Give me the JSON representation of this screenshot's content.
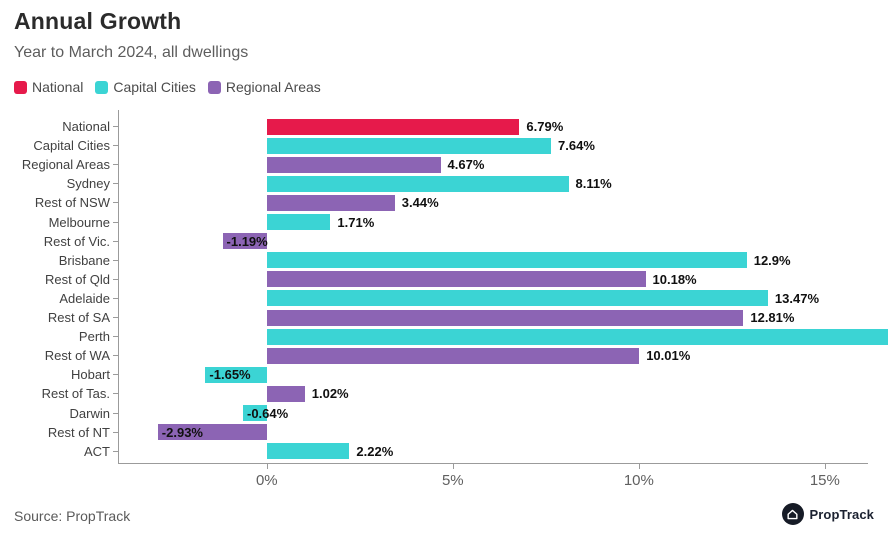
{
  "header": {
    "title": "Annual Growth",
    "subtitle": "Year to March 2024, all dwellings"
  },
  "legend": [
    {
      "label": "National",
      "group": "national"
    },
    {
      "label": "Capital Cities",
      "group": "capital_cities"
    },
    {
      "label": "Regional Areas",
      "group": "regional_areas"
    }
  ],
  "colors": {
    "national": "#e61a4b",
    "capital_cities": "#3bd4d4",
    "regional_areas": "#8c64b4",
    "axis": "#9b9b9b",
    "value_label": "#101010"
  },
  "chart_data": {
    "type": "bar",
    "orientation": "horizontal",
    "title": "Annual Growth",
    "subtitle": "Year to March 2024, all dwellings",
    "legend_position": "top-left",
    "grid": false,
    "xlabel": "",
    "ylabel": "",
    "x_axis": {
      "min": -4.0,
      "max": 16.16,
      "ticks": [
        {
          "value": 0,
          "label": "0%"
        },
        {
          "value": 5,
          "label": "5%"
        },
        {
          "value": 10,
          "label": "10%"
        },
        {
          "value": 15,
          "label": "15%"
        }
      ]
    },
    "bars": [
      {
        "category": "National",
        "value": 6.79,
        "value_label": "6.79%",
        "group": "national"
      },
      {
        "category": "Capital Cities",
        "value": 7.64,
        "value_label": "7.64%",
        "group": "capital_cities"
      },
      {
        "category": "Regional Areas",
        "value": 4.67,
        "value_label": "4.67%",
        "group": "regional_areas"
      },
      {
        "category": "Sydney",
        "value": 8.11,
        "value_label": "8.11%",
        "group": "capital_cities"
      },
      {
        "category": "Rest of NSW",
        "value": 3.44,
        "value_label": "3.44%",
        "group": "regional_areas"
      },
      {
        "category": "Melbourne",
        "value": 1.71,
        "value_label": "1.71%",
        "group": "capital_cities"
      },
      {
        "category": "Rest of Vic.",
        "value": -1.19,
        "value_label": "-1.19%",
        "group": "regional_areas"
      },
      {
        "category": "Brisbane",
        "value": 12.9,
        "value_label": "12.9%",
        "group": "capital_cities"
      },
      {
        "category": "Rest of Qld",
        "value": 10.18,
        "value_label": "10.18%",
        "group": "regional_areas"
      },
      {
        "category": "Adelaide",
        "value": 13.47,
        "value_label": "13.47%",
        "group": "capital_cities"
      },
      {
        "category": "Rest of SA",
        "value": 12.81,
        "value_label": "12.81%",
        "group": "regional_areas"
      },
      {
        "category": "Perth",
        "value": 16.7,
        "value_label": "",
        "group": "capital_cities",
        "clipped": true
      },
      {
        "category": "Rest of WA",
        "value": 10.01,
        "value_label": "10.01%",
        "group": "regional_areas"
      },
      {
        "category": "Hobart",
        "value": -1.65,
        "value_label": "-1.65%",
        "group": "capital_cities"
      },
      {
        "category": "Rest of Tas.",
        "value": 1.02,
        "value_label": "1.02%",
        "group": "regional_areas"
      },
      {
        "category": "Darwin",
        "value": -0.64,
        "value_label": "-0.64%",
        "group": "capital_cities"
      },
      {
        "category": "Rest of NT",
        "value": -2.93,
        "value_label": "-2.93%",
        "group": "regional_areas"
      },
      {
        "category": "ACT",
        "value": 2.22,
        "value_label": "2.22%",
        "group": "capital_cities"
      }
    ]
  },
  "footer": {
    "source": "Source: PropTrack",
    "logo_text": "PropTrack"
  }
}
